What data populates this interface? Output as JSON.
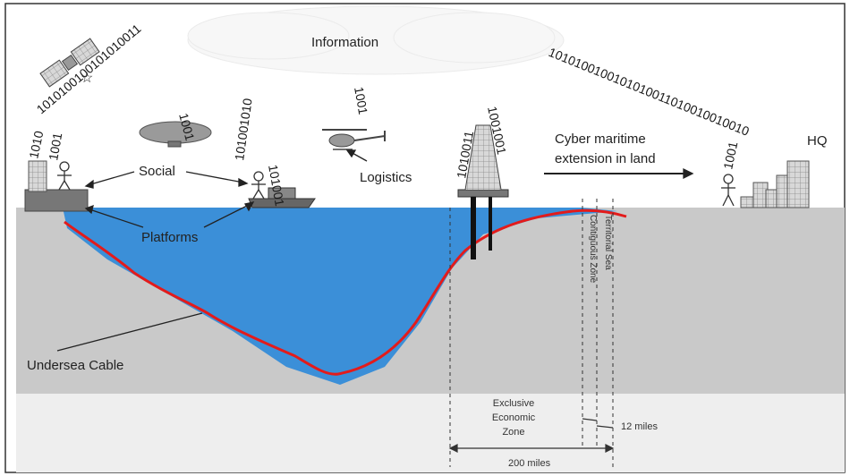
{
  "labels": {
    "information": "Information",
    "social": "Social",
    "logistics": "Logistics",
    "platforms": "Platforms",
    "undersea_cable": "Undersea Cable",
    "cyber_line1": "Cyber maritime",
    "cyber_line2": "extension in land",
    "hq": "HQ",
    "eez_line1": "Exclusive",
    "eez_line2": "Economic",
    "eez_line3": "Zone",
    "twelve_miles": "12 miles",
    "two_hundred_miles": "200 miles",
    "contiguous_zone": "Contiguous Zone",
    "territorial_sea": "Territorial Sea"
  },
  "binary": {
    "satellite_arc": "1010100100101010011",
    "left_person_1": "1001",
    "blimp": "1001",
    "ship_person": "101001010",
    "ship_person_2": "101001",
    "helicopter": "1001",
    "rig_left": "1010011",
    "rig_right": "1001001",
    "hq_arc": "1010100100101010011010010010010",
    "hq_person": "1001"
  },
  "colors": {
    "sea": "#3b8fd8",
    "sea_light": "#5aa6e8",
    "land": "#c9c9c9",
    "cable": "#e31b1b",
    "cloud": "#eeeeee"
  }
}
